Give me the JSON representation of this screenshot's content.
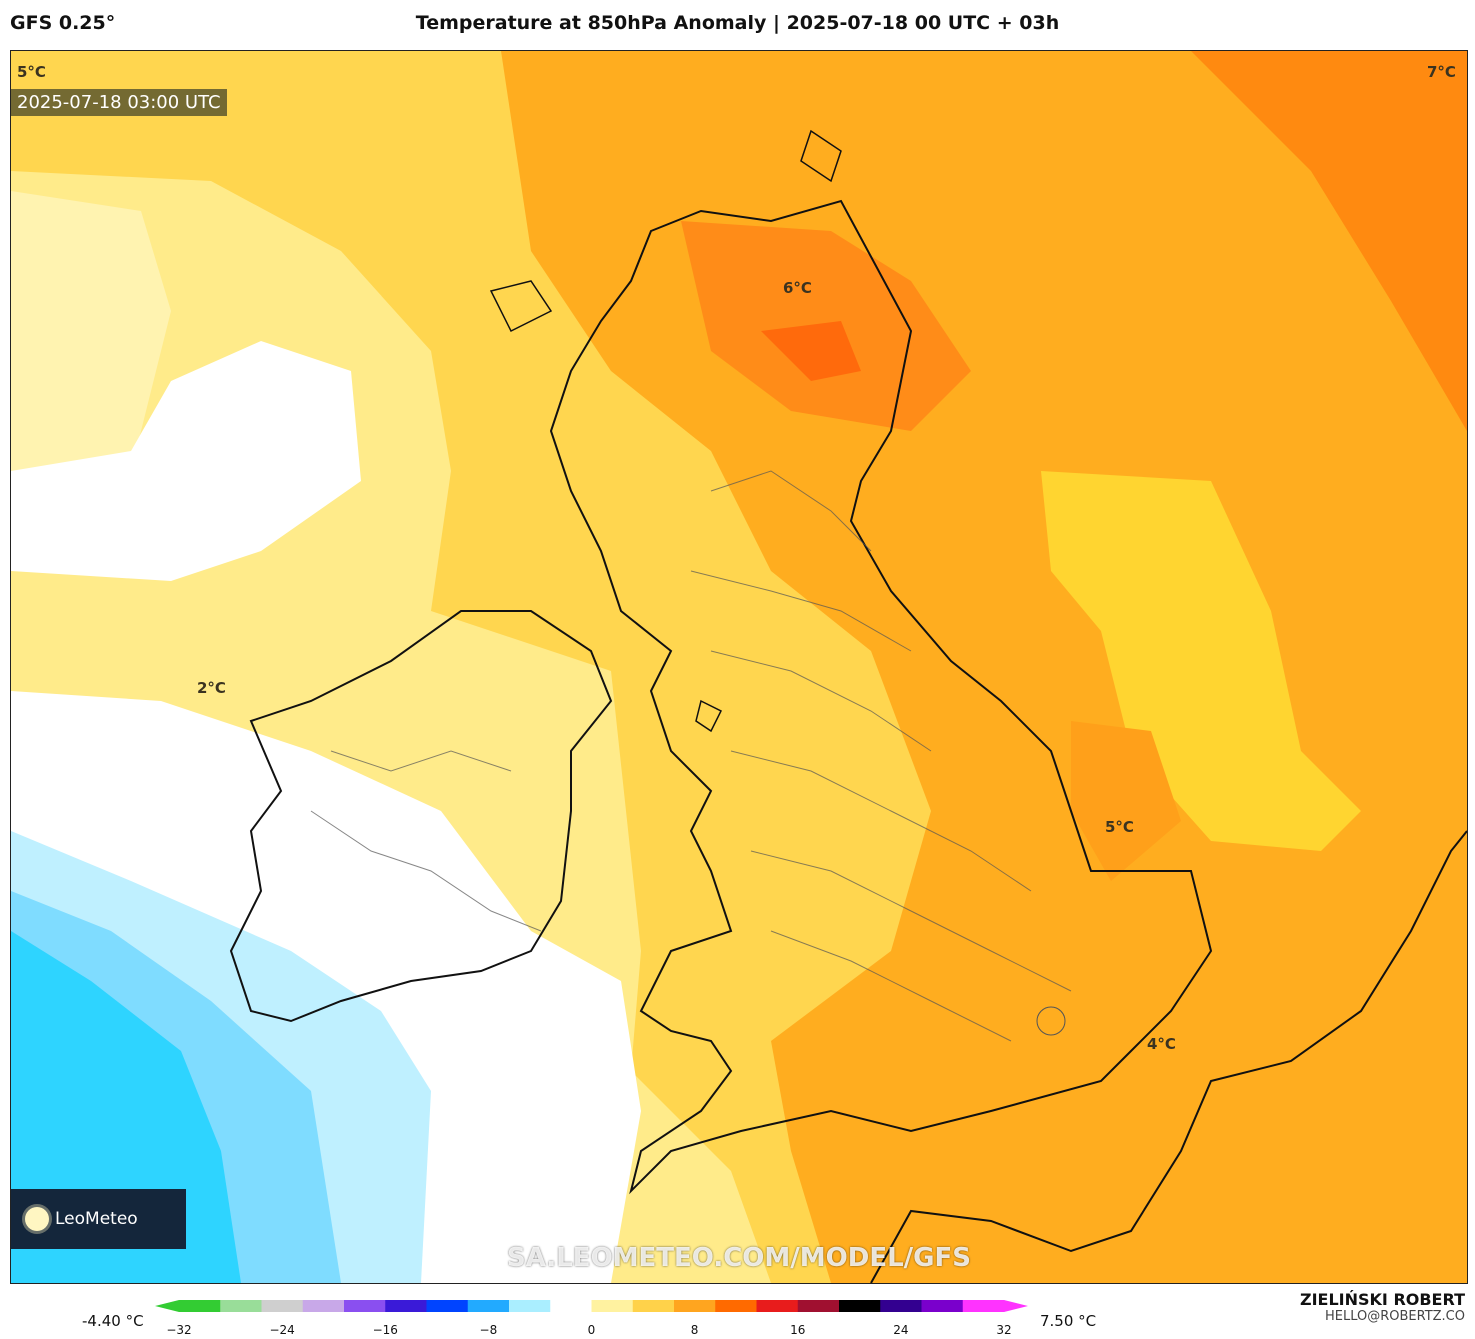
{
  "header": {
    "model": "GFS 0.25°",
    "title": "Temperature at 850hPa Anomaly | 2025-07-18 00 UTC + 03h"
  },
  "map": {
    "timestamp": "2025-07-18 03:00 UTC",
    "contour_labels": [
      "5°C",
      "7°C",
      "6°C",
      "2°C",
      "5°C",
      "4°C"
    ],
    "brand": "LeoMeteo",
    "url": "SA.LEOMETEO.COM/MODEL/GFS"
  },
  "colorbar": {
    "min_label": "-4.40 °C",
    "max_label": "7.50 °C",
    "ticks": [
      "−32",
      "−24",
      "−16",
      "−8",
      "0",
      "8",
      "16",
      "24",
      "32"
    ],
    "colors": [
      "#33cc33",
      "#99dd99",
      "#cfcfcf",
      "#c8a8e8",
      "#8a4ff0",
      "#3a1ad8",
      "#0044ff",
      "#22aaff",
      "#aaeeff",
      "#ffffff",
      "#fff2a0",
      "#ffd24a",
      "#ffa51f",
      "#ff6a00",
      "#e81c1c",
      "#a01030",
      "#000000",
      "#330090",
      "#7a00cc",
      "#ff33ff"
    ]
  },
  "credit": {
    "author": "ZIELIŃSKI ROBERT",
    "email": "HELLO@ROBERTZ.CO"
  }
}
